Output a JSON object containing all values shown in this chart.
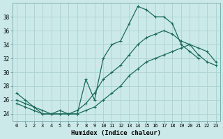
{
  "xlabel": "Humidex (Indice chaleur)",
  "background_color": "#cce9ea",
  "grid_color": "#b0d4d4",
  "line_color": "#1a6b5a",
  "xlim": [
    -0.5,
    23.5
  ],
  "ylim": [
    23.0,
    40.0
  ],
  "yticks": [
    24,
    26,
    28,
    30,
    32,
    34,
    36,
    38
  ],
  "xticks": [
    0,
    1,
    2,
    3,
    4,
    5,
    6,
    7,
    8,
    9,
    10,
    11,
    12,
    13,
    14,
    15,
    16,
    17,
    18,
    19,
    20,
    21,
    22,
    23
  ],
  "line1_x": [
    0,
    1,
    2,
    3,
    4,
    5,
    6,
    7,
    8,
    9,
    10,
    11,
    12,
    13,
    14,
    15,
    16,
    17,
    18,
    19,
    20,
    21
  ],
  "line1_y": [
    27.0,
    26.0,
    25.0,
    24.0,
    24.0,
    24.5,
    24.0,
    24.0,
    29.0,
    26.0,
    32.0,
    34.0,
    34.5,
    37.0,
    39.5,
    39.0,
    38.0,
    38.0,
    37.0,
    34.0,
    33.0,
    32.0
  ],
  "line2_x": [
    0,
    1,
    2,
    3,
    4,
    5,
    6,
    7,
    8,
    9,
    10,
    11,
    12,
    13,
    14,
    15,
    16,
    17,
    18,
    19,
    20,
    21,
    22,
    23
  ],
  "line2_y": [
    26.0,
    25.5,
    25.0,
    24.5,
    24.0,
    24.0,
    24.0,
    24.5,
    25.5,
    27.0,
    29.0,
    30.0,
    31.0,
    32.5,
    34.0,
    35.0,
    35.5,
    36.0,
    35.5,
    34.5,
    34.0,
    33.5,
    33.0,
    31.5
  ],
  "line3_x": [
    0,
    1,
    2,
    3,
    4,
    5,
    6,
    7,
    8,
    9,
    10,
    11,
    12,
    13,
    14,
    15,
    16,
    17,
    18,
    19,
    20,
    21,
    22,
    23
  ],
  "line3_y": [
    25.5,
    25.0,
    24.5,
    24.0,
    24.0,
    24.0,
    24.0,
    24.0,
    24.5,
    25.0,
    26.0,
    27.0,
    28.0,
    29.5,
    30.5,
    31.5,
    32.0,
    32.5,
    33.0,
    33.5,
    34.0,
    32.5,
    31.5,
    31.0
  ]
}
